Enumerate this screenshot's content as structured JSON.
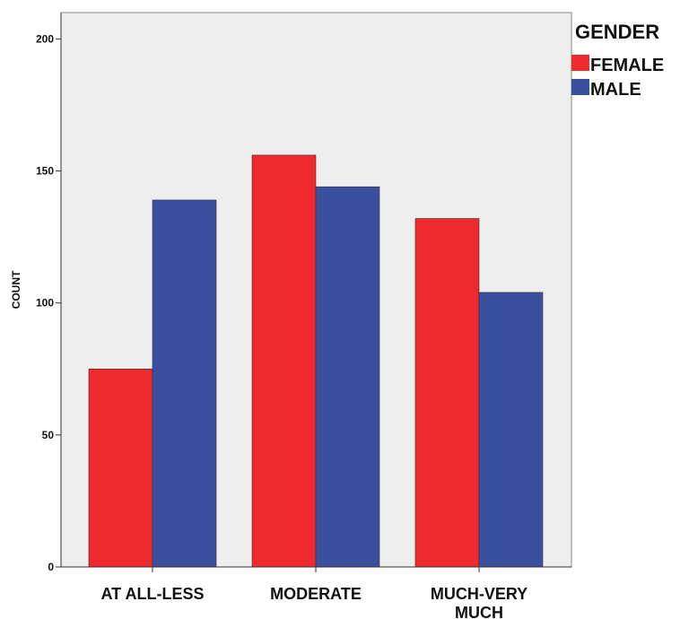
{
  "chart_data": {
    "type": "bar",
    "categories": [
      "AT ALL-LESS",
      "MODERATE",
      "MUCH-VERY MUCH"
    ],
    "category_label_lines": [
      [
        "AT ALL-LESS"
      ],
      [
        "MODERATE"
      ],
      [
        "MUCH-VERY",
        "MUCH"
      ]
    ],
    "series": [
      {
        "name": "FEMALE",
        "values": [
          75,
          156,
          132
        ],
        "color": "#ee2a2f"
      },
      {
        "name": "MALE",
        "values": [
          139,
          144,
          104
        ],
        "color": "#3a4f9e"
      }
    ],
    "ylabel": "COUNT",
    "xlabel": "",
    "ylim": [
      0,
      210
    ],
    "yticks": [
      0,
      50,
      100,
      150,
      200
    ],
    "legend_title": "GENDER",
    "legend_position": "top-right, outside plot",
    "plot_background": "#eeeeee",
    "grid": false
  }
}
